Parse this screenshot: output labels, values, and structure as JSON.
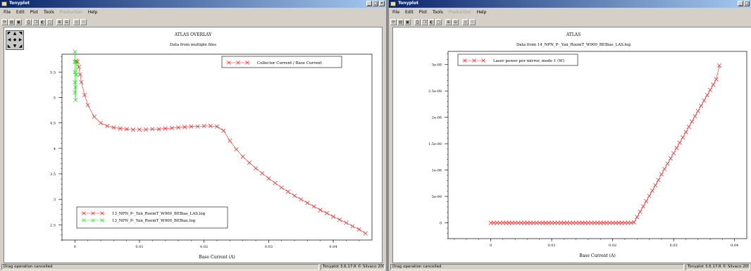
{
  "windows": [
    {
      "title": "Tonyplot",
      "menu": [
        "File",
        "Edit",
        "Plot",
        "Tools",
        "Production",
        "Help"
      ],
      "menu_disabled": [
        "Production"
      ],
      "plot": {
        "title": "ATLAS OVERLAY",
        "subtitle": "Data from multiple files",
        "xlabel": "Base Current (A)",
        "legend_top": "Collector Current / Base Current",
        "legend_bottom": [
          "13_NPN_P-_Yan_RoomT_W900_BEBias_LAS.log",
          "13_NPN_P-_Yan_RoomT_W900_BEBias.log"
        ]
      },
      "status": {
        "left": "Drag operation cancelled",
        "right": "Tonyplot 3.6.17.R © Silvaco 2008"
      }
    },
    {
      "title": "Tonyplot",
      "menu": [
        "File",
        "Edit",
        "Plot",
        "Tools",
        "Production",
        "Help"
      ],
      "menu_disabled": [
        "Production"
      ],
      "plot": {
        "title": "ATLAS",
        "subtitle": "Data from 14_NPN_P-_Yan_RoomT_W900_BEBias_LAS.log",
        "xlabel": "Base Current (A)",
        "legend": "Laser power per mirror, mode 1 (W)"
      },
      "status": {
        "left": "Drag operation cancelled",
        "right": "Tonyplot 3.6.17.R © Silvaco 2008"
      }
    }
  ],
  "colors": {
    "series_red": "#ff2020",
    "series_green": "#20e020",
    "titlebar": "#0a246a"
  },
  "icons": {
    "window_buttons": [
      "minimize-icon",
      "maximize-icon",
      "close-icon"
    ]
  },
  "chart_data": [
    {
      "type": "line",
      "title": "ATLAS OVERLAY",
      "subtitle": "Data from multiple files",
      "xlabel": "Base Current (A)",
      "ylabel": "",
      "xlim": [
        -0.002,
        0.046
      ],
      "ylim": [
        2.2,
        5.85
      ],
      "x_ticks": [
        "0",
        "0.01",
        "0.02",
        "0.03",
        "0.04"
      ],
      "y_ticks": [
        "2.5",
        "3",
        "3.5",
        "4",
        "4.5",
        "5",
        "5.5"
      ],
      "legend": "top-right",
      "series": [
        {
          "name": "13_NPN_P-_Yan_RoomT_W900_BEBias_LAS.log",
          "color": "#ff2020",
          "x": [
            0.0,
            0.0002,
            0.0004,
            0.0006,
            0.0008,
            0.001,
            0.0015,
            0.002,
            0.003,
            0.004,
            0.005,
            0.006,
            0.007,
            0.008,
            0.009,
            0.01,
            0.011,
            0.012,
            0.013,
            0.014,
            0.015,
            0.016,
            0.017,
            0.018,
            0.019,
            0.02,
            0.021,
            0.022,
            0.023,
            0.024,
            0.025,
            0.026,
            0.027,
            0.028,
            0.029,
            0.03,
            0.031,
            0.032,
            0.033,
            0.034,
            0.035,
            0.036,
            0.037,
            0.038,
            0.039,
            0.04,
            0.041,
            0.042,
            0.043,
            0.044,
            0.045
          ],
          "y": [
            5.7,
            5.72,
            5.7,
            5.6,
            5.45,
            5.3,
            5.05,
            4.85,
            4.62,
            4.5,
            4.44,
            4.41,
            4.39,
            4.38,
            4.37,
            4.37,
            4.37,
            4.38,
            4.38,
            4.39,
            4.4,
            4.41,
            4.42,
            4.43,
            4.43,
            4.44,
            4.44,
            4.43,
            4.35,
            4.15,
            3.98,
            3.84,
            3.72,
            3.61,
            3.51,
            3.41,
            3.32,
            3.23,
            3.15,
            3.07,
            3.0,
            2.93,
            2.86,
            2.79,
            2.73,
            2.66,
            2.6,
            2.54,
            2.47,
            2.41,
            2.33
          ]
        },
        {
          "name": "13_NPN_P-_Yan_RoomT_W900_BEBias.log",
          "color": "#20e020",
          "x": [
            0.0,
            0.0,
            0.0,
            0.0,
            0.0,
            0.0001,
            0.0001,
            0.0002,
            0.0002
          ],
          "y": [
            5.9,
            5.7,
            5.5,
            5.3,
            5.1,
            4.95,
            5.2,
            5.45,
            5.7
          ]
        },
        {
          "name": "Collector Current / Base Current",
          "color": "#ff2020",
          "x": [],
          "y": []
        }
      ]
    },
    {
      "type": "line",
      "title": "ATLAS",
      "subtitle": "Data from 14_NPN_P-_Yan_RoomT_W900_BEBias_LAS.log",
      "xlabel": "Base Current (A)",
      "ylabel": "",
      "xlim": [
        -0.007,
        0.042
      ],
      "ylim": [
        -3e-09,
        3.25e-08
      ],
      "x_ticks": [
        "0",
        "0.01",
        "0.02",
        "0.03",
        "0.04"
      ],
      "y_ticks": [
        "0",
        "5e-09",
        "1e-08",
        "1.5e-08",
        "2e-08",
        "2.5e-08",
        "3e-08"
      ],
      "legend": "top-left",
      "series": [
        {
          "name": "Laser power per mirror, mode 1 (W)",
          "color": "#ff2020",
          "x": [
            0.0,
            0.0005,
            0.001,
            0.0015,
            0.002,
            0.0025,
            0.003,
            0.0035,
            0.004,
            0.0045,
            0.005,
            0.0055,
            0.006,
            0.0065,
            0.007,
            0.0075,
            0.008,
            0.0085,
            0.009,
            0.0095,
            0.01,
            0.0105,
            0.011,
            0.0115,
            0.012,
            0.0125,
            0.013,
            0.0135,
            0.014,
            0.0145,
            0.015,
            0.0155,
            0.016,
            0.0165,
            0.017,
            0.0175,
            0.018,
            0.0185,
            0.019,
            0.0195,
            0.02,
            0.0205,
            0.021,
            0.0215,
            0.022,
            0.0225,
            0.023,
            0.0235,
            0.024,
            0.0245,
            0.025,
            0.0255,
            0.026,
            0.0265,
            0.027,
            0.0275,
            0.028,
            0.0285,
            0.029,
            0.0295,
            0.03,
            0.0305,
            0.031,
            0.0315,
            0.032,
            0.0325,
            0.033,
            0.0335,
            0.034,
            0.0345,
            0.035,
            0.0355,
            0.036,
            0.0365,
            0.037,
            0.0375
          ],
          "y": [
            0,
            0,
            0,
            0,
            0,
            0,
            0,
            0,
            0,
            0,
            0,
            0,
            0,
            0,
            0,
            0,
            0,
            0,
            0,
            0,
            0,
            0,
            0,
            0,
            0,
            0,
            0,
            0,
            0,
            0,
            0,
            0,
            0,
            0,
            0,
            0,
            0,
            0,
            0,
            0,
            0,
            0,
            0,
            0,
            0,
            0,
            0,
            1e-10,
            1.1e-09,
            2.1e-09,
            3.1e-09,
            4.1e-09,
            5.1e-09,
            6.1e-09,
            7.1e-09,
            8.1e-09,
            9.2e-09,
            1.02e-08,
            1.12e-08,
            1.22e-08,
            1.32e-08,
            1.42e-08,
            1.52e-08,
            1.62e-08,
            1.72e-08,
            1.82e-08,
            1.92e-08,
            2.02e-08,
            2.12e-08,
            2.22e-08,
            2.32e-08,
            2.42e-08,
            2.52e-08,
            2.62e-08,
            2.72e-08,
            2.98e-08
          ]
        }
      ]
    }
  ]
}
